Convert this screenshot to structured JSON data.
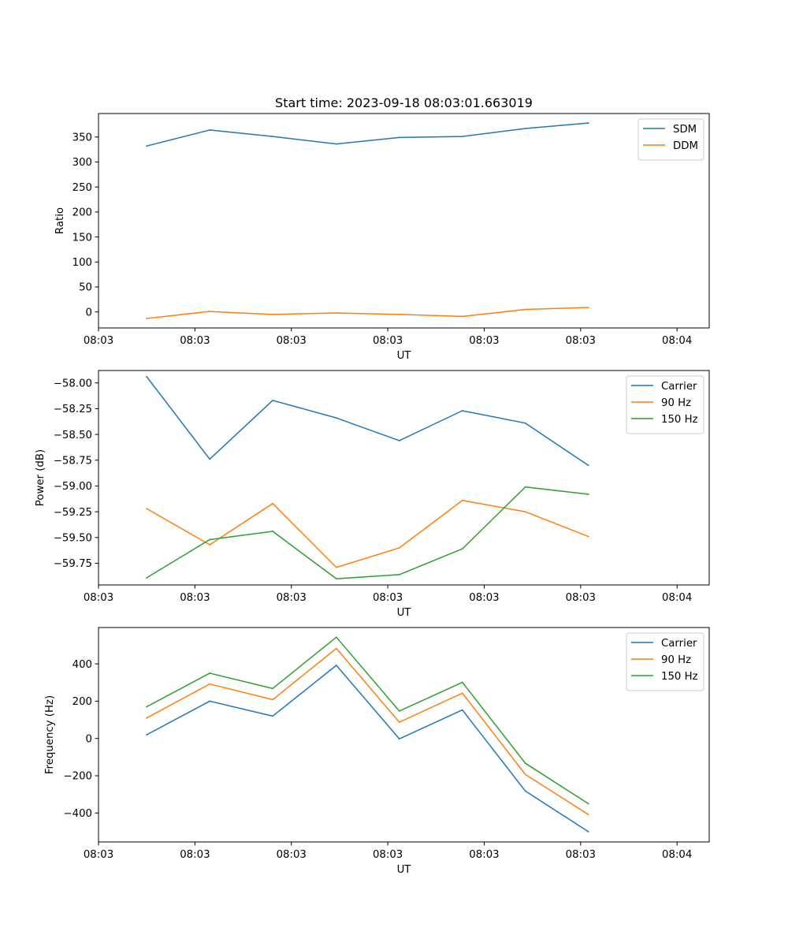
{
  "colors": {
    "series_blue": "#1f77b4",
    "series_orange": "#ff7f0e",
    "series_green": "#2ca02c",
    "axis": "#000000",
    "legend_border": "#cccccc"
  },
  "chart_data": [
    {
      "type": "line",
      "title": "Start time: 2023-09-18 08:03:01.663019",
      "xlabel": "UT",
      "ylabel": "Ratio",
      "xlim": [
        0,
        9.5
      ],
      "ylim": [
        -32,
        397
      ],
      "x_ticks": [
        0,
        1.5,
        3,
        4.5,
        6,
        7.5,
        9
      ],
      "x_tick_labels": [
        "08:03",
        "08:03",
        "08:03",
        "08:03",
        "08:03",
        "08:03",
        "08:04"
      ],
      "y_ticks": [
        0,
        50,
        100,
        150,
        200,
        250,
        300,
        350
      ],
      "y_tick_labels": [
        "0",
        "50",
        "100",
        "150",
        "200",
        "250",
        "300",
        "350"
      ],
      "legend_position": "top-right",
      "x": [
        0.75,
        1.73,
        2.71,
        3.7,
        4.68,
        5.66,
        6.64,
        7.62
      ],
      "series": [
        {
          "name": "SDM",
          "color": "#1f77b4",
          "values": [
            332,
            364,
            351,
            336,
            349,
            351,
            367,
            378
          ]
        },
        {
          "name": "DDM",
          "color": "#ff7f0e",
          "values": [
            -13,
            1,
            -5,
            -2,
            -5,
            -9,
            5,
            9
          ]
        }
      ]
    },
    {
      "type": "line",
      "title": "",
      "xlabel": "UT",
      "ylabel": "Power (dB)",
      "xlim": [
        0,
        9.5
      ],
      "ylim": [
        -59.96,
        -57.88
      ],
      "x_ticks": [
        0,
        1.5,
        3,
        4.5,
        6,
        7.5,
        9
      ],
      "x_tick_labels": [
        "08:03",
        "08:03",
        "08:03",
        "08:03",
        "08:03",
        "08:03",
        "08:04"
      ],
      "y_ticks": [
        -59.75,
        -59.5,
        -59.25,
        -59.0,
        -58.75,
        -58.5,
        -58.25,
        -58.0
      ],
      "y_tick_labels": [
        "−59.75",
        "−59.50",
        "−59.25",
        "−59.00",
        "−58.75",
        "−58.50",
        "−58.25",
        "−58.00"
      ],
      "legend_position": "top-right",
      "x": [
        0.75,
        1.73,
        2.71,
        3.7,
        4.68,
        5.66,
        6.64,
        7.62
      ],
      "series": [
        {
          "name": "Carrier",
          "color": "#1f77b4",
          "values": [
            -57.94,
            -58.74,
            -58.17,
            -58.34,
            -58.56,
            -58.27,
            -58.39,
            -58.8
          ]
        },
        {
          "name": "90 Hz",
          "color": "#ff7f0e",
          "values": [
            -59.22,
            -59.57,
            -59.17,
            -59.79,
            -59.6,
            -59.14,
            -59.25,
            -59.49
          ]
        },
        {
          "name": "150 Hz",
          "color": "#2ca02c",
          "values": [
            -59.89,
            -59.52,
            -59.44,
            -59.9,
            -59.86,
            -59.61,
            -59.01,
            -59.08
          ]
        }
      ]
    },
    {
      "type": "line",
      "title": "",
      "xlabel": "UT",
      "ylabel": "Frequency (Hz)",
      "xlim": [
        0,
        9.5
      ],
      "ylim": [
        -555,
        595
      ],
      "x_ticks": [
        0,
        1.5,
        3,
        4.5,
        6,
        7.5,
        9
      ],
      "x_tick_labels": [
        "08:03",
        "08:03",
        "08:03",
        "08:03",
        "08:03",
        "08:03",
        "08:04"
      ],
      "y_ticks": [
        -400,
        -200,
        0,
        200,
        400
      ],
      "y_tick_labels": [
        "−400",
        "−200",
        "0",
        "200",
        "400"
      ],
      "legend_position": "top-right",
      "x": [
        0.75,
        1.73,
        2.71,
        3.7,
        4.68,
        5.66,
        6.64,
        7.62
      ],
      "series": [
        {
          "name": "Carrier",
          "color": "#1f77b4",
          "values": [
            20,
            200,
            120,
            392,
            -2,
            153,
            -282,
            -500
          ]
        },
        {
          "name": "90 Hz",
          "color": "#ff7f0e",
          "values": [
            110,
            292,
            208,
            483,
            87,
            243,
            -193,
            -408
          ]
        },
        {
          "name": "150 Hz",
          "color": "#2ca02c",
          "values": [
            170,
            350,
            268,
            543,
            147,
            301,
            -133,
            -350
          ]
        }
      ]
    }
  ]
}
